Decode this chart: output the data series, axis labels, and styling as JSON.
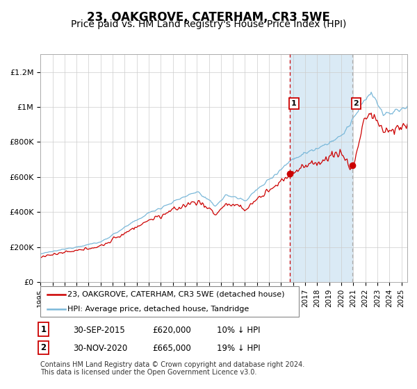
{
  "title": "23, OAKGROVE, CATERHAM, CR3 5WE",
  "subtitle": "Price paid vs. HM Land Registry's House Price Index (HPI)",
  "ylim": [
    0,
    1300000
  ],
  "yticks": [
    0,
    200000,
    400000,
    600000,
    800000,
    1000000,
    1200000
  ],
  "ytick_labels": [
    "£0",
    "£200K",
    "£400K",
    "£600K",
    "£800K",
    "£1M",
    "£1.2M"
  ],
  "xlim_start": 1995.0,
  "xlim_end": 2025.5,
  "sale1_date": 2015.75,
  "sale1_price": 620000,
  "sale2_date": 2020.917,
  "sale2_price": 665000,
  "legend_line1": "23, OAKGROVE, CATERHAM, CR3 5WE (detached house)",
  "legend_line2": "HPI: Average price, detached house, Tandridge",
  "footer_line1": "Contains HM Land Registry data © Crown copyright and database right 2024.",
  "footer_line2": "This data is licensed under the Open Government Licence v3.0.",
  "hpi_color": "#7ab8d9",
  "price_color": "#cc0000",
  "shaded_color": "#daeaf5",
  "grid_color": "#cccccc",
  "title_fontsize": 12,
  "subtitle_fontsize": 10,
  "tick_fontsize": 8,
  "legend_fontsize": 8,
  "table_fontsize": 8.5,
  "footer_fontsize": 7
}
